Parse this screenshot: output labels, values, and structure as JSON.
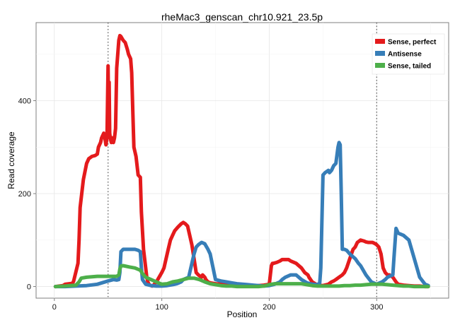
{
  "chart_data": {
    "type": "line",
    "title": "rheMac3_genscan_chr10.921_23.5p",
    "xlabel": "Position",
    "ylabel": "Read coverage",
    "xlim": [
      -17,
      367
    ],
    "ylim": [
      -25,
      568
    ],
    "xticks": [
      0,
      100,
      200,
      300
    ],
    "yticks": [
      0,
      200,
      400
    ],
    "grid": true,
    "legend_position": "top-right",
    "vlines": [
      50,
      300
    ],
    "series": [
      {
        "name": "Sense, perfect",
        "color": "#E41A1C",
        "x": [
          1,
          8,
          10,
          17,
          18,
          22,
          23,
          24,
          27,
          30,
          32,
          35,
          38,
          40,
          41,
          43,
          44,
          46,
          47,
          48,
          49,
          50,
          50.5,
          51,
          51.5,
          52,
          53,
          54,
          55,
          56,
          57,
          58,
          59,
          60,
          61,
          62,
          64,
          66,
          68,
          69,
          71,
          72,
          73,
          74,
          76,
          78,
          80,
          81,
          83,
          85,
          86,
          87,
          88,
          89,
          90,
          91,
          92,
          93,
          95,
          100,
          102,
          104,
          106,
          108,
          110,
          112,
          115,
          118,
          120,
          122,
          124,
          126,
          128,
          130,
          132,
          134,
          137,
          138,
          140,
          141,
          143,
          145,
          150,
          155,
          160,
          165,
          170,
          175,
          180,
          185,
          190,
          195,
          200,
          202,
          203,
          204,
          207,
          210,
          212,
          214,
          216,
          218,
          220,
          225,
          230,
          233,
          236,
          237,
          240,
          245,
          250,
          255,
          258,
          260,
          262,
          265,
          268,
          270,
          272,
          275,
          278,
          280,
          282,
          285,
          288,
          290,
          292,
          294,
          296,
          298,
          300,
          302,
          304,
          305,
          306,
          308,
          310,
          312,
          315,
          318,
          320,
          325,
          330,
          335,
          340,
          345,
          348
        ],
        "y": [
          0,
          2,
          5,
          7,
          12,
          50,
          100,
          170,
          230,
          265,
          275,
          280,
          282,
          285,
          300,
          310,
          320,
          330,
          320,
          305,
          320,
          475,
          380,
          440,
          330,
          320,
          310,
          320,
          310,
          320,
          340,
          470,
          500,
          530,
          540,
          538,
          530,
          525,
          510,
          500,
          490,
          460,
          380,
          300,
          280,
          240,
          235,
          160,
          80,
          40,
          20,
          10,
          5,
          3,
          2,
          1,
          2,
          5,
          10,
          30,
          40,
          60,
          80,
          100,
          110,
          120,
          128,
          135,
          138,
          135,
          130,
          110,
          90,
          60,
          30,
          25,
          20,
          25,
          20,
          15,
          10,
          8,
          6,
          5,
          4,
          3,
          2,
          2,
          1,
          1,
          2,
          3,
          5,
          45,
          50,
          50,
          52,
          55,
          58,
          58,
          58,
          58,
          55,
          50,
          40,
          30,
          25,
          20,
          10,
          3,
          2,
          5,
          10,
          12,
          15,
          20,
          25,
          30,
          40,
          60,
          80,
          85,
          95,
          100,
          98,
          96,
          95,
          95,
          95,
          93,
          90,
          85,
          70,
          55,
          40,
          30,
          25,
          25,
          20,
          10,
          5,
          3,
          2,
          1,
          1,
          0,
          0
        ]
      },
      {
        "name": "Antisense",
        "color": "#377EB8",
        "x": [
          1,
          10,
          20,
          30,
          40,
          50,
          55,
          58,
          60,
          61,
          62,
          64,
          70,
          75,
          78,
          80,
          81,
          82,
          85,
          90,
          95,
          100,
          105,
          110,
          112,
          114,
          116,
          118,
          120,
          125,
          130,
          132,
          134,
          137,
          140,
          141,
          143,
          145,
          150,
          155,
          160,
          165,
          170,
          175,
          180,
          185,
          190,
          195,
          200,
          205,
          210,
          212,
          215,
          220,
          225,
          230,
          235,
          240,
          245,
          247,
          248,
          250,
          252,
          255,
          256,
          258,
          260,
          262,
          264,
          265,
          266,
          267,
          268,
          270,
          272,
          275,
          280,
          283,
          285,
          290,
          295,
          300,
          303,
          305,
          308,
          310,
          312,
          315,
          316,
          318,
          320,
          325,
          330,
          335,
          340,
          345,
          348
        ],
        "y": [
          0,
          0,
          1,
          2,
          5,
          12,
          15,
          14,
          15,
          30,
          75,
          80,
          80,
          80,
          78,
          75,
          40,
          15,
          5,
          2,
          1,
          1,
          2,
          4,
          5,
          6,
          8,
          10,
          15,
          20,
          70,
          85,
          90,
          95,
          92,
          88,
          80,
          70,
          15,
          12,
          10,
          8,
          6,
          5,
          4,
          3,
          2,
          1,
          2,
          5,
          10,
          15,
          20,
          25,
          25,
          15,
          8,
          5,
          4,
          8,
          40,
          240,
          245,
          250,
          245,
          250,
          260,
          265,
          300,
          310,
          305,
          200,
          80,
          80,
          78,
          70,
          60,
          50,
          45,
          25,
          10,
          5,
          8,
          10,
          15,
          20,
          22,
          25,
          60,
          125,
          115,
          110,
          100,
          60,
          20,
          5,
          2
        ]
      },
      {
        "name": "Sense, tailed",
        "color": "#4DAF4A",
        "x": [
          1,
          10,
          15,
          20,
          23,
          25,
          30,
          35,
          40,
          45,
          50,
          55,
          58,
          60,
          61,
          62,
          64,
          70,
          75,
          80,
          82,
          85,
          90,
          95,
          100,
          105,
          110,
          115,
          120,
          125,
          130,
          135,
          140,
          145,
          150,
          155,
          160,
          165,
          170,
          175,
          180,
          185,
          190,
          195,
          200,
          205,
          210,
          215,
          220,
          225,
          230,
          235,
          240,
          245,
          250,
          255,
          260,
          265,
          270,
          275,
          280,
          285,
          290,
          295,
          300,
          305,
          310,
          315,
          320,
          325,
          330,
          335,
          340,
          345,
          348
        ],
        "y": [
          0,
          1,
          2,
          3,
          10,
          18,
          20,
          21,
          22,
          22,
          22,
          22,
          22,
          25,
          38,
          44,
          45,
          42,
          40,
          35,
          28,
          20,
          15,
          10,
          5,
          6,
          10,
          12,
          15,
          18,
          18,
          15,
          10,
          6,
          4,
          2,
          1,
          1,
          0,
          0,
          0,
          0,
          0,
          1,
          4,
          6,
          6,
          6,
          6,
          6,
          6,
          4,
          2,
          1,
          1,
          1,
          1,
          1,
          2,
          2,
          3,
          3,
          4,
          5,
          5,
          5,
          4,
          3,
          2,
          1,
          1,
          0,
          0,
          0,
          0
        ]
      }
    ]
  }
}
